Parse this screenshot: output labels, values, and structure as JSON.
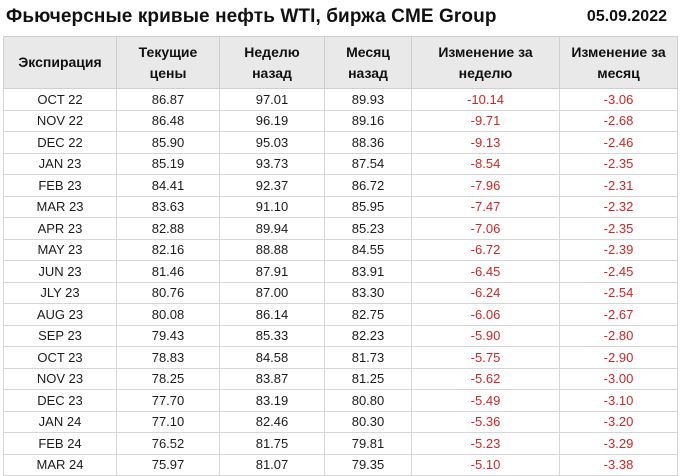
{
  "chart_data": {
    "type": "table",
    "title": "Фьючерсные кривые нефть WTI, биржа CME Group",
    "date": "05.09.2022",
    "columns": [
      "Экспирация",
      "Текущие цены",
      "Неделю назад",
      "Месяц назад",
      "Изменение за неделю",
      "Изменение за месяц"
    ],
    "column_keys": [
      "expiration",
      "current_price",
      "week_ago",
      "month_ago",
      "change_week",
      "change_month"
    ],
    "rows": [
      [
        "OCT 22",
        "86.87",
        "97.01",
        "89.93",
        "-10.14",
        "-3.06"
      ],
      [
        "NOV 22",
        "86.48",
        "96.19",
        "89.16",
        "-9.71",
        "-2.68"
      ],
      [
        "DEC 22",
        "85.90",
        "95.03",
        "88.36",
        "-9.13",
        "-2.46"
      ],
      [
        "JAN 23",
        "85.19",
        "93.73",
        "87.54",
        "-8.54",
        "-2.35"
      ],
      [
        "FEB 23",
        "84.41",
        "92.37",
        "86.72",
        "-7.96",
        "-2.31"
      ],
      [
        "MAR 23",
        "83.63",
        "91.10",
        "85.95",
        "-7.47",
        "-2.32"
      ],
      [
        "APR 23",
        "82.88",
        "89.94",
        "85.23",
        "-7.06",
        "-2.35"
      ],
      [
        "MAY 23",
        "82.16",
        "88.88",
        "84.55",
        "-6.72",
        "-2.39"
      ],
      [
        "JUN 23",
        "81.46",
        "87.91",
        "83.91",
        "-6.45",
        "-2.45"
      ],
      [
        "JLY 23",
        "80.76",
        "87.00",
        "83.30",
        "-6.24",
        "-2.54"
      ],
      [
        "AUG 23",
        "80.08",
        "86.14",
        "82.75",
        "-6.06",
        "-2.67"
      ],
      [
        "SEP 23",
        "79.43",
        "85.33",
        "82.23",
        "-5.90",
        "-2.80"
      ],
      [
        "OCT 23",
        "78.83",
        "84.58",
        "81.73",
        "-5.75",
        "-2.90"
      ],
      [
        "NOV 23",
        "78.25",
        "83.87",
        "81.25",
        "-5.62",
        "-3.00"
      ],
      [
        "DEC 23",
        "77.70",
        "83.19",
        "80.80",
        "-5.49",
        "-3.10"
      ],
      [
        "JAN 24",
        "77.10",
        "82.46",
        "80.30",
        "-5.36",
        "-3.20"
      ],
      [
        "FEB 24",
        "76.52",
        "81.75",
        "79.81",
        "-5.23",
        "-3.29"
      ],
      [
        "MAR 24",
        "75.97",
        "81.07",
        "79.35",
        "-5.10",
        "-3.38"
      ]
    ],
    "colors": {
      "negative_value": "#cc2626",
      "header_background": "#e9e9e9",
      "border": "#d6d6d6",
      "text": "#111111"
    },
    "layout": {
      "grid": true,
      "legend": "none"
    }
  }
}
